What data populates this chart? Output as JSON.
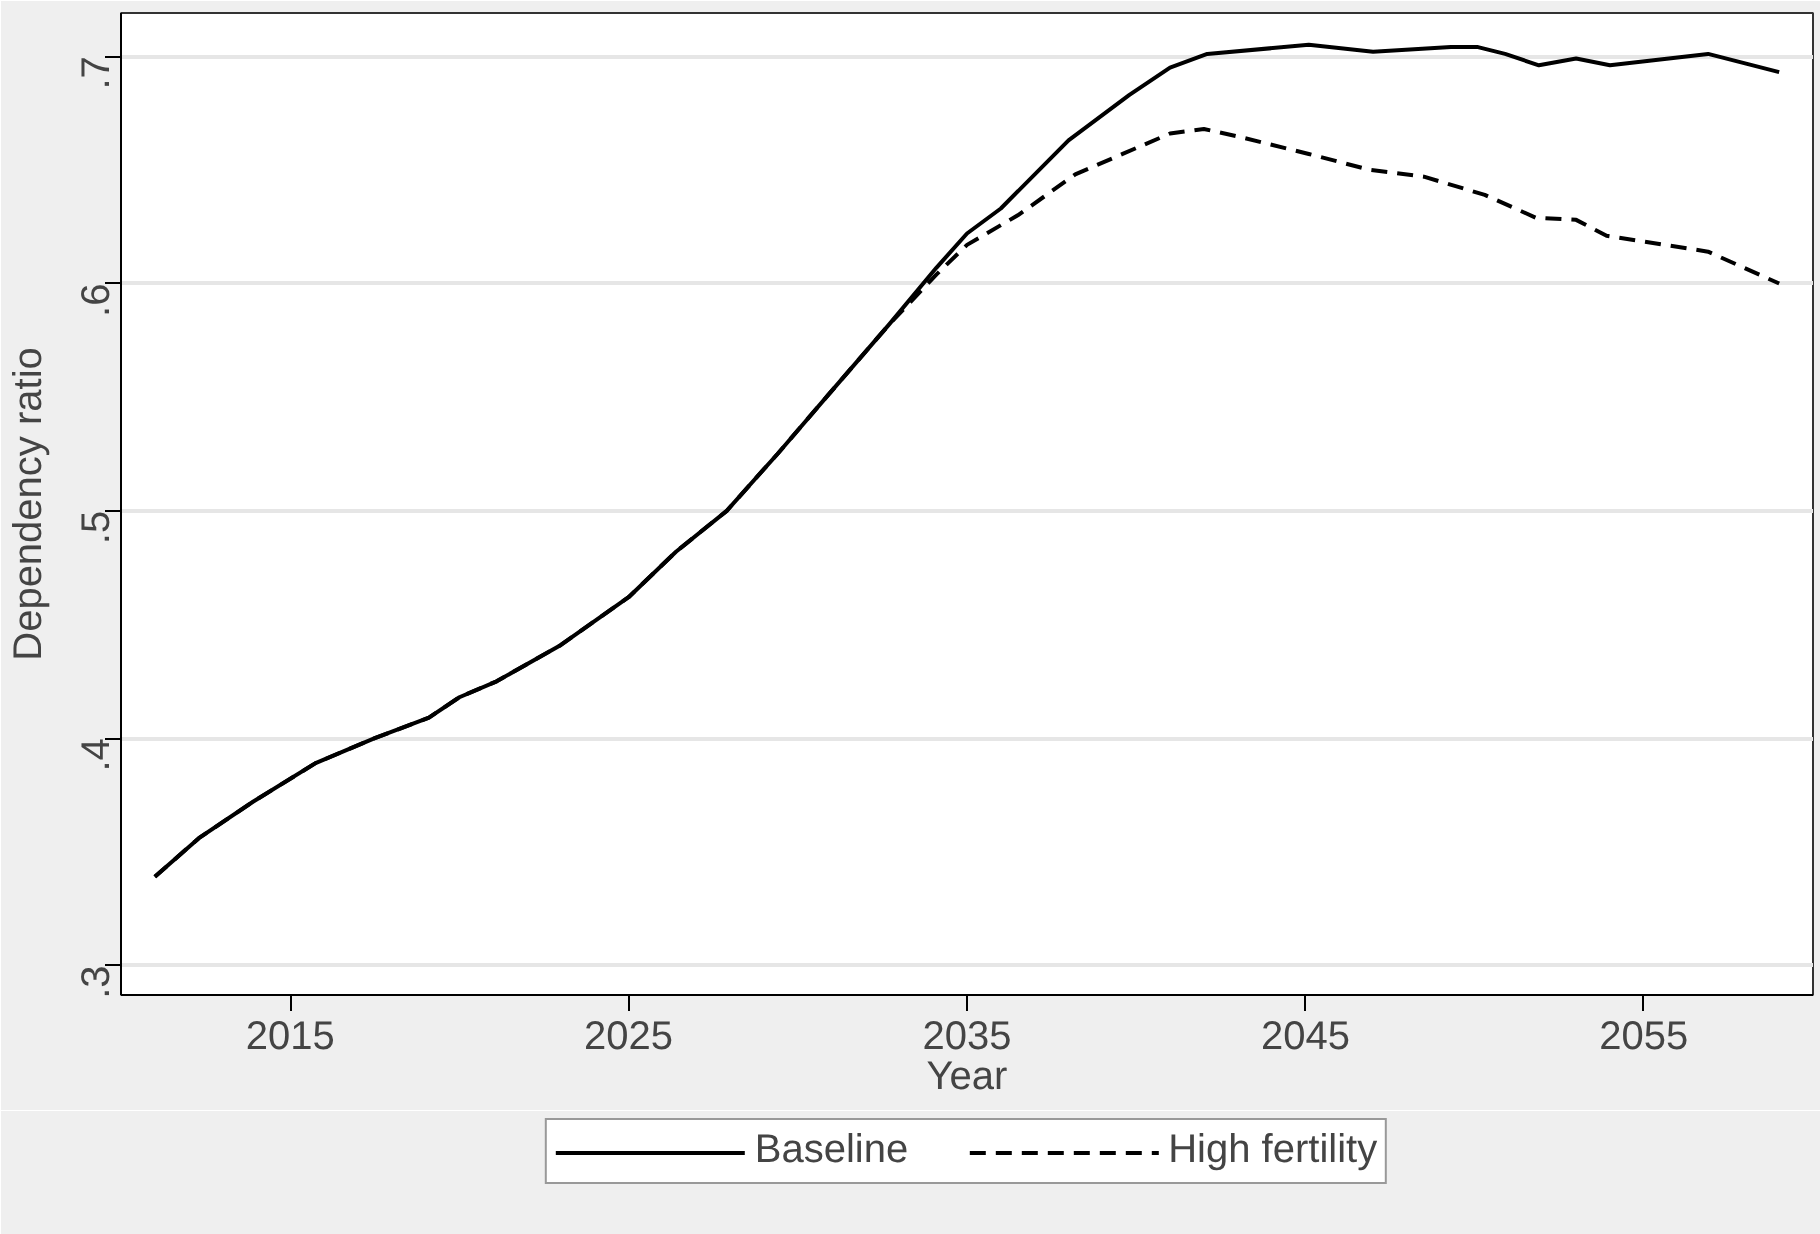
{
  "chart_data": {
    "type": "line",
    "xlabel": "Year",
    "ylabel": "Dependency ratio",
    "xlim": [
      2010,
      2060
    ],
    "ylim": [
      0.287,
      0.719
    ],
    "xticks": [
      2015,
      2025,
      2035,
      2045,
      2055
    ],
    "yticks": [
      {
        "value": 0.3,
        "label": ".3"
      },
      {
        "value": 0.4,
        "label": ".4"
      },
      {
        "value": 0.5,
        "label": ".5"
      },
      {
        "value": 0.6,
        "label": ".6"
      },
      {
        "value": 0.7,
        "label": ".7"
      }
    ],
    "grid": "y",
    "legend": "bottom",
    "marker": "none",
    "series": [
      {
        "name": "Baseline",
        "color": "#000000",
        "line_style": "solid",
        "x": [
          2011,
          2012.3,
          2013.9,
          2015.75,
          2017.5,
          2019.1,
          2020,
          2021.1,
          2023,
          2025,
          2026.4,
          2027.9,
          2029.4,
          2030.9,
          2032.7,
          2034.1,
          2035,
          2036,
          2038,
          2039.8,
          2041,
          2042.1,
          2045.1,
          2047,
          2049.3,
          2050.1,
          2050.9,
          2051.9,
          2053,
          2054,
          2056.9,
          2059
        ],
        "values": [
          0.339,
          0.356,
          0.372,
          0.389,
          0.4,
          0.409,
          0.418,
          0.425,
          0.441,
          0.462,
          0.482,
          0.5,
          0.525,
          0.551,
          0.582,
          0.607,
          0.622,
          0.633,
          0.663,
          0.683,
          0.695,
          0.701,
          0.705,
          0.702,
          0.704,
          0.704,
          0.701,
          0.696,
          0.699,
          0.696,
          0.701,
          0.693
        ]
      },
      {
        "name": "High fertility",
        "color": "#000000",
        "line_style": "dashed",
        "x": [
          2011,
          2012.3,
          2013.9,
          2015.75,
          2017.5,
          2019.1,
          2020,
          2021.1,
          2023,
          2025,
          2026.4,
          2027.9,
          2029.4,
          2030.9,
          2032.7,
          2034.1,
          2035,
          2036.5,
          2038.2,
          2039.6,
          2041,
          2042,
          2043.2,
          2045.1,
          2046.9,
          2048.5,
          2050.3,
          2051.8,
          2053,
          2053.9,
          2056.9,
          2059
        ],
        "values": [
          0.339,
          0.356,
          0.372,
          0.389,
          0.4,
          0.409,
          0.418,
          0.425,
          0.441,
          0.462,
          0.482,
          0.5,
          0.525,
          0.551,
          0.582,
          0.604,
          0.617,
          0.63,
          0.648,
          0.657,
          0.666,
          0.668,
          0.664,
          0.657,
          0.65,
          0.647,
          0.639,
          0.629,
          0.628,
          0.621,
          0.614,
          0.6
        ]
      }
    ]
  }
}
